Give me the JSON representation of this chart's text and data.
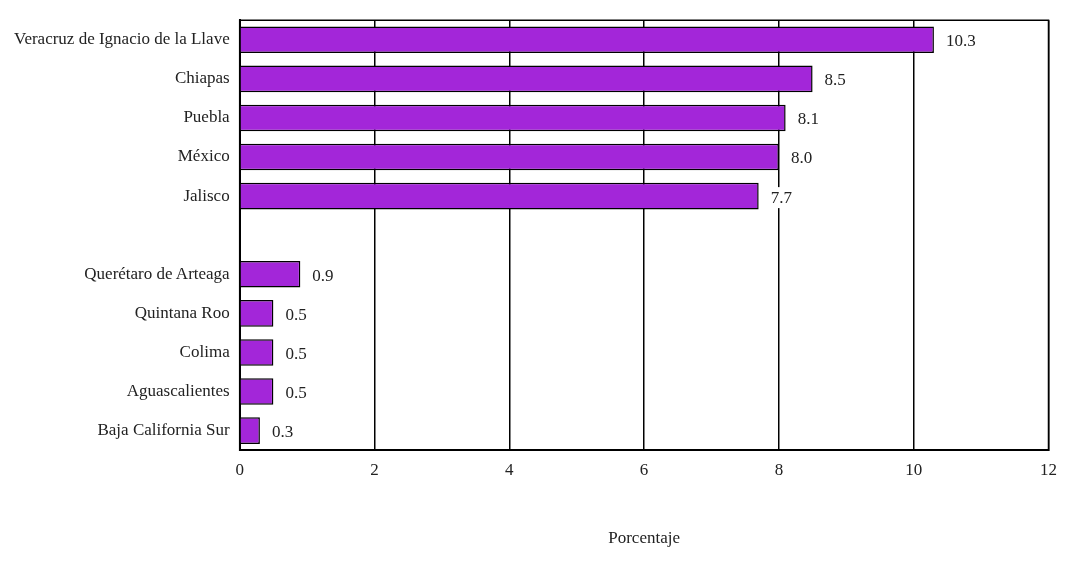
{
  "chart_data": {
    "type": "bar",
    "orientation": "horizontal",
    "xlabel": "Porcentaje",
    "categories": [
      "Veracruz de Ignacio de la Llave",
      "Chiapas",
      "Puebla",
      "México",
      "Jalisco",
      null,
      "Querétaro de Arteaga",
      "Quintana Roo",
      "Colima",
      "Aguascalientes",
      "Baja California Sur"
    ],
    "values": [
      10.3,
      8.5,
      8.1,
      8.0,
      7.7,
      null,
      0.9,
      0.5,
      0.5,
      0.5,
      0.3
    ],
    "value_labels": [
      "10.3",
      "8.5",
      "8.1",
      "8.0",
      "7.7",
      null,
      "0.9",
      "0.5",
      "0.5",
      "0.5",
      "0.3"
    ],
    "color": "#a326d9",
    "xlim": [
      0,
      12
    ],
    "xticks": [
      0,
      2,
      4,
      6,
      8,
      10,
      12
    ],
    "grid": "x",
    "legend": false
  }
}
